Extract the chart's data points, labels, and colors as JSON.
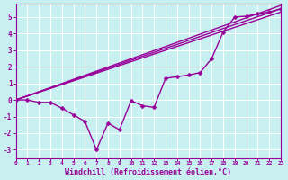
{
  "background_color": "#c8f0f0",
  "grid_color": "#ffffff",
  "line_color": "#990099",
  "marker": "D",
  "markersize": 2.5,
  "linewidth": 1.0,
  "xlabel": "Windchill (Refroidissement éolien,°C)",
  "xlabel_fontsize": 6,
  "xtick_labels": [
    "0",
    "1",
    "2",
    "3",
    "4",
    "5",
    "6",
    "7",
    "8",
    "9",
    "10",
    "11",
    "12",
    "13",
    "14",
    "15",
    "16",
    "17",
    "18",
    "19",
    "20",
    "21",
    "22",
    "23"
  ],
  "ytick_labels": [
    "-3",
    "-2",
    "-1",
    "0",
    "1",
    "2",
    "3",
    "4",
    "5"
  ],
  "xlim": [
    0,
    23
  ],
  "ylim": [
    -3.5,
    5.8
  ],
  "line1_x": [
    0,
    1,
    2,
    3,
    4,
    5,
    6,
    7,
    8,
    9,
    10,
    11,
    12,
    13,
    14,
    15,
    16,
    17,
    18,
    19,
    20,
    21,
    22,
    23
  ],
  "line1_y": [
    0.0,
    0.0,
    -0.15,
    -0.15,
    -0.5,
    -0.9,
    -1.3,
    -3.0,
    -1.4,
    -1.8,
    -0.05,
    -0.35,
    -0.45,
    1.3,
    1.4,
    1.5,
    1.65,
    2.5,
    4.1,
    5.0,
    5.05,
    5.2,
    5.3,
    5.5
  ],
  "line2_x": [
    0,
    23
  ],
  "line2_y": [
    0.0,
    5.3
  ],
  "line3_x": [
    0,
    23
  ],
  "line3_y": [
    0.0,
    5.5
  ],
  "line4_x": [
    0,
    23
  ],
  "line4_y": [
    0.0,
    5.7
  ]
}
